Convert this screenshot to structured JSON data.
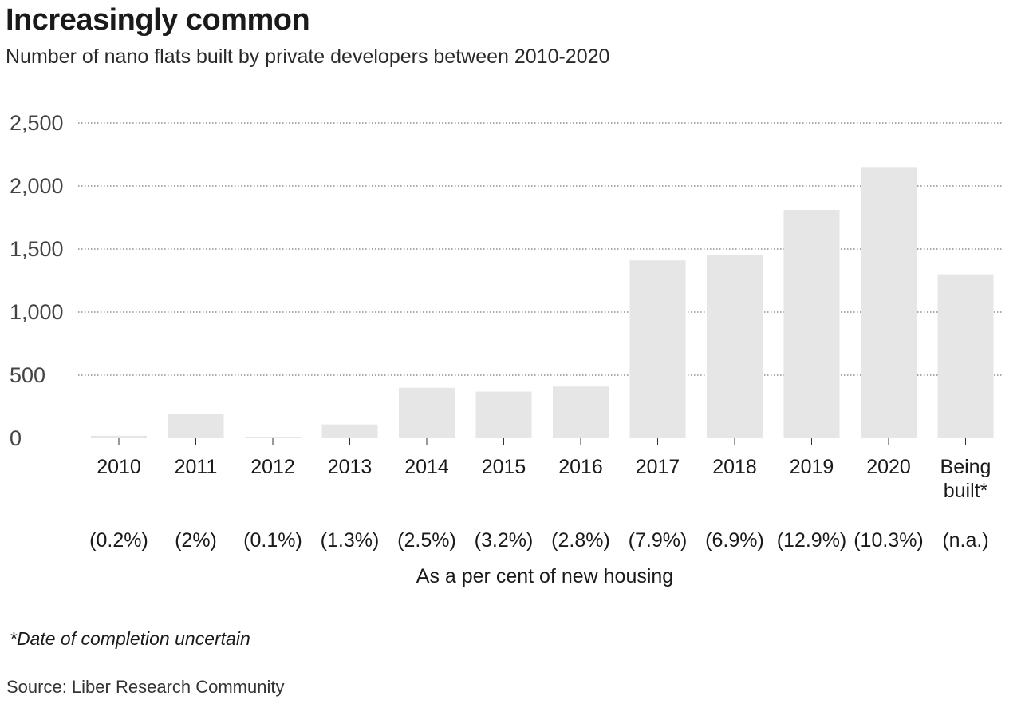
{
  "title": "Increasingly common",
  "subtitle": "Number of nano flats built by private developers between 2010-2020",
  "footnote": "*Date of completion uncertain",
  "source": "Source: Liber Research Community",
  "chart_data": {
    "type": "bar",
    "categories": [
      "2010",
      "2011",
      "2012",
      "2013",
      "2014",
      "2015",
      "2016",
      "2017",
      "2018",
      "2019",
      "2020",
      "Being built*"
    ],
    "values": [
      20,
      190,
      10,
      110,
      400,
      370,
      410,
      1410,
      1450,
      1810,
      2150,
      1300
    ],
    "percent_labels": [
      "(0.2%)",
      "(2%)",
      "(0.1%)",
      "(1.3%)",
      "(2.5%)",
      "(3.2%)",
      "(2.8%)",
      "(7.9%)",
      "(6.9%)",
      "(12.9%)",
      "(10.3%)",
      "(n.a.)"
    ],
    "percent_caption": "As a per cent of new housing",
    "y_ticks": [
      "0",
      "500",
      "1,000",
      "1,500",
      "2,000",
      "2,500"
    ],
    "y_tick_values": [
      0,
      500,
      1000,
      1500,
      2000,
      2500
    ],
    "ylim": [
      0,
      2500
    ],
    "grid": true,
    "bar_color": "#e6e6e6",
    "grid_color": "#555555"
  }
}
